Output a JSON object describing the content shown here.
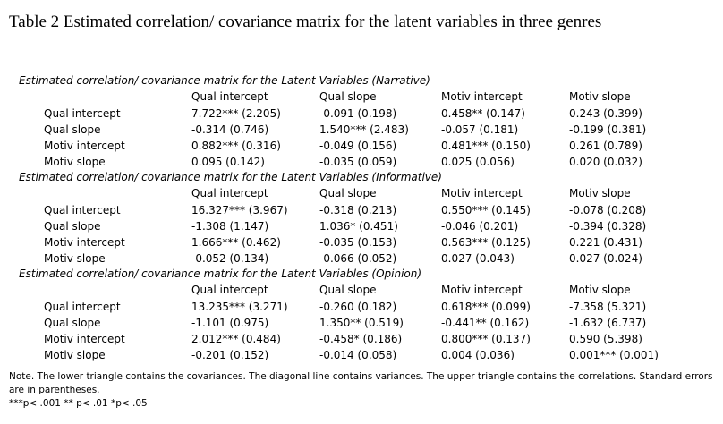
{
  "title": "Table 2 Estimated correlation/ covariance matrix for the latent variables in three genres",
  "columns": [
    "Qual intercept",
    "Qual slope",
    "Motiv intercept",
    "Motiv slope"
  ],
  "sections": [
    {
      "title": "Estimated correlation/ covariance matrix for the Latent Variables (Narrative)",
      "rows": [
        {
          "label": "Qual intercept",
          "cells": [
            "7.722*** (2.205)",
            "-0.091 (0.198)",
            "0.458** (0.147)",
            "0.243 (0.399)"
          ]
        },
        {
          "label": "Qual slope",
          "cells": [
            "-0.314 (0.746)",
            "1.540*** (2.483)",
            "-0.057 (0.181)",
            "-0.199 (0.381)"
          ]
        },
        {
          "label": "Motiv intercept",
          "cells": [
            "0.882*** (0.316)",
            "-0.049 (0.156)",
            "0.481*** (0.150)",
            "0.261 (0.789)"
          ]
        },
        {
          "label": "Motiv slope",
          "cells": [
            "0.095 (0.142)",
            "-0.035 (0.059)",
            "0.025 (0.056)",
            "0.020 (0.032)"
          ]
        }
      ]
    },
    {
      "title": "Estimated correlation/ covariance matrix for the Latent Variables (Informative)",
      "rows": [
        {
          "label": "Qual intercept",
          "cells": [
            "16.327*** (3.967)",
            "-0.318 (0.213)",
            "0.550*** (0.145)",
            "-0.078 (0.208)"
          ]
        },
        {
          "label": "Qual slope",
          "cells": [
            "-1.308 (1.147)",
            "1.036* (0.451)",
            "-0.046 (0.201)",
            "-0.394 (0.328)"
          ]
        },
        {
          "label": "Motiv intercept",
          "cells": [
            "1.666*** (0.462)",
            "-0.035 (0.153)",
            "0.563*** (0.125)",
            "0.221 (0.431)"
          ]
        },
        {
          "label": "Motiv slope",
          "cells": [
            "-0.052 (0.134)",
            "-0.066 (0.052)",
            "0.027 (0.043)",
            "0.027 (0.024)"
          ]
        }
      ]
    },
    {
      "title": "Estimated correlation/ covariance matrix for the Latent Variables (Opinion)",
      "rows": [
        {
          "label": "Qual intercept",
          "cells": [
            "13.235*** (3.271)",
            "-0.260 (0.182)",
            "0.618*** (0.099)",
            "-7.358 (5.321)"
          ]
        },
        {
          "label": "Qual slope",
          "cells": [
            "-1.101 (0.975)",
            "1.350** (0.519)",
            "-0.441** (0.162)",
            "-1.632 (6.737)"
          ]
        },
        {
          "label": "Motiv intercept",
          "cells": [
            "2.012*** (0.484)",
            "-0.458* (0.186)",
            "0.800*** (0.137)",
            "0.590 (5.398)"
          ]
        },
        {
          "label": "Motiv slope",
          "cells": [
            "-0.201 (0.152)",
            "-0.014 (0.058)",
            "0.004 (0.036)",
            "0.001*** (0.001)"
          ]
        }
      ]
    }
  ],
  "note": "Note. The lower triangle contains the covariances. The diagonal line contains variances. The upper triangle contains the correlations. Standard errors are in parentheses.",
  "significance": "***p< .001  ** p< .01  *p< .05"
}
